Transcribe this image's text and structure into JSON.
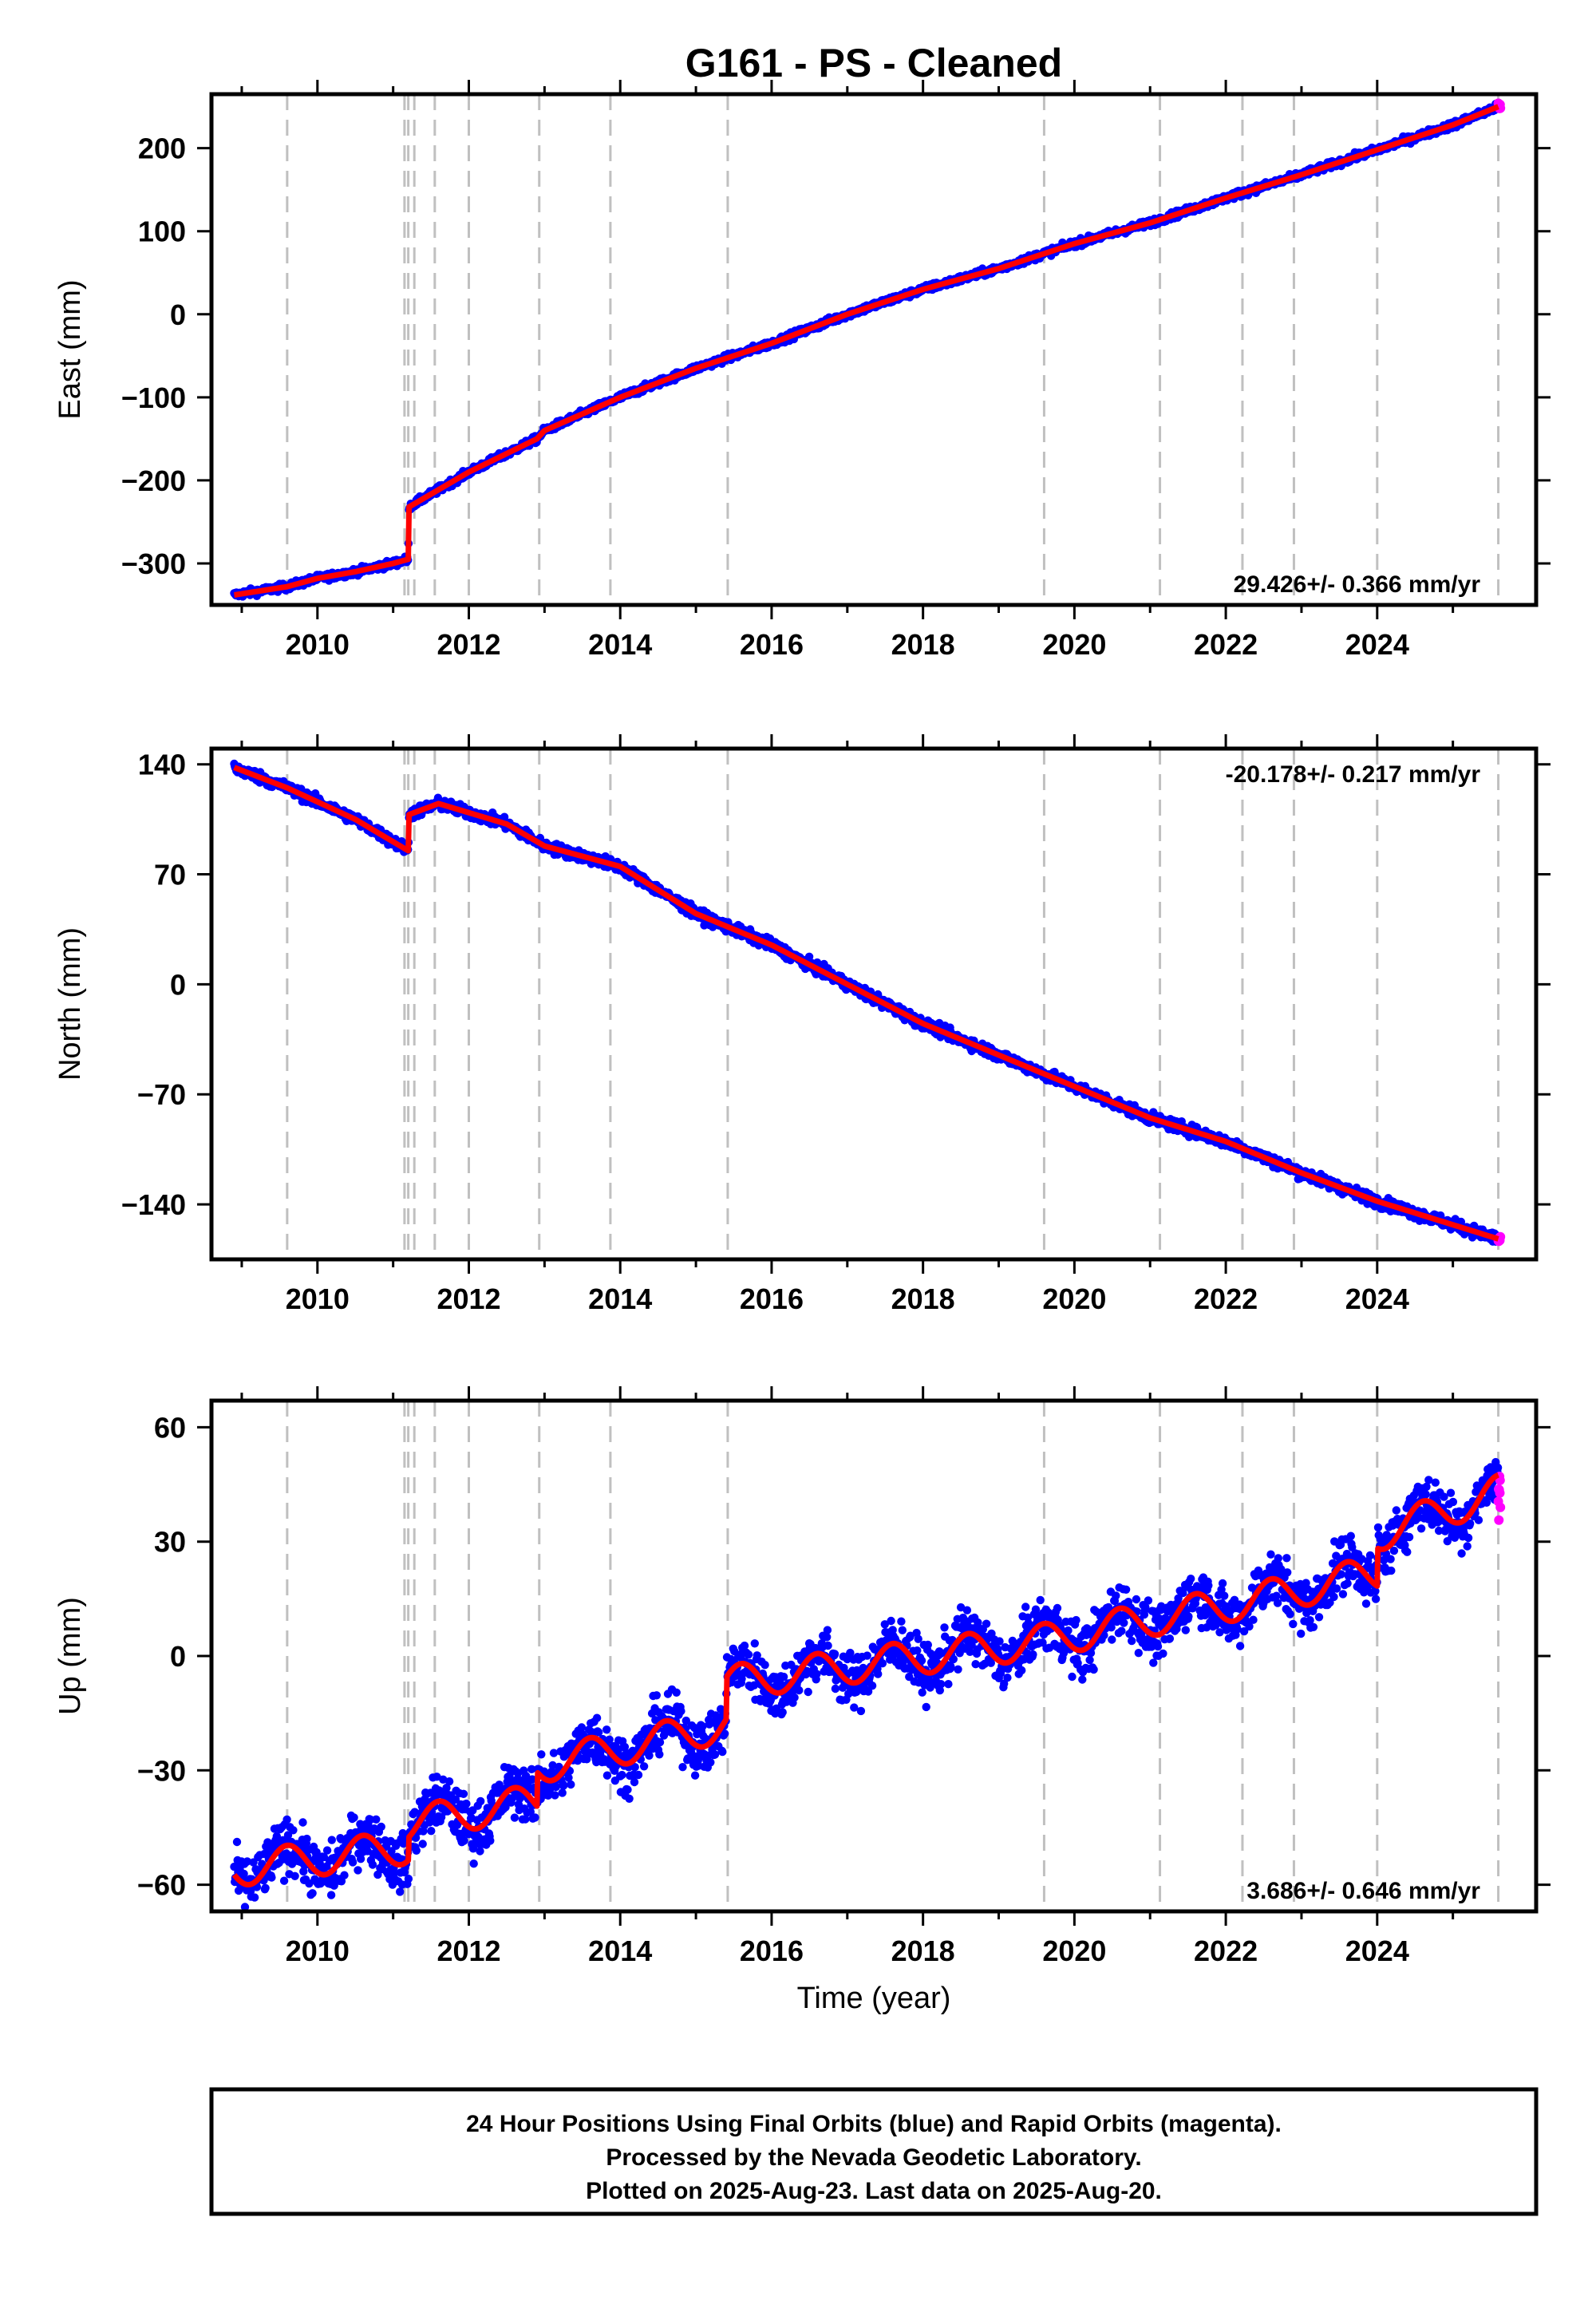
{
  "title": "G161  - PS - Cleaned",
  "xlabel": "Time (year)",
  "colors": {
    "final_orbits": "#0000ff",
    "rapid_orbits": "#ff00ff",
    "model": "#ff0000",
    "steps": "#c0c0c0",
    "frame": "#000000"
  },
  "footer": {
    "line1": "24 Hour Positions Using Final Orbits (blue) and Rapid Orbits (magenta).",
    "line2": "Processed by the Nevada Geodetic Laboratory.",
    "line3": "Plotted on 2025-Aug-23. Last data on 2025-Aug-20."
  },
  "chart_data": [
    {
      "type": "scatter",
      "component": "east",
      "ylabel": "East (mm)",
      "rate_label": "29.426+/- 0.366 mm/yr",
      "rate_position": "bottom-right",
      "x_range": [
        2008.6,
        2026.1
      ],
      "ylim": [
        -350,
        265
      ],
      "x_ticks": [
        2010,
        2012,
        2014,
        2016,
        2018,
        2020,
        2022,
        2024
      ],
      "y_ticks": [
        -300,
        -200,
        -100,
        0,
        100,
        200
      ],
      "y_tick_labels": [
        "−300",
        "−200",
        "−100",
        "0",
        "100",
        "200"
      ],
      "series": [
        {
          "role": "trend",
          "x": [
            2008.9,
            2009.6,
            2010.0,
            2010.5,
            2011.0,
            2011.2,
            2011.21,
            2012.0,
            2012.9,
            2013.0,
            2014.0,
            2015.0,
            2016.0,
            2017.0,
            2018.0,
            2019.0,
            2020.0,
            2021.0,
            2022.0,
            2023.0,
            2024.0,
            2025.0,
            2025.6
          ],
          "y": [
            -338,
            -328,
            -318,
            -310,
            -300,
            -295,
            -232,
            -190,
            -150,
            -140,
            -100,
            -65,
            -35,
            0,
            30,
            55,
            85,
            110,
            140,
            168,
            198,
            228,
            250
          ],
          "noise": 3
        }
      ]
    },
    {
      "type": "scatter",
      "component": "north",
      "ylabel": "North (mm)",
      "rate_label": "-20.178+/- 0.217 mm/yr",
      "rate_position": "top-right",
      "x_range": [
        2008.6,
        2026.1
      ],
      "ylim": [
        -175,
        150
      ],
      "x_ticks": [
        2010,
        2012,
        2014,
        2016,
        2018,
        2020,
        2022,
        2024
      ],
      "y_ticks": [
        -140,
        -70,
        0,
        70,
        140
      ],
      "y_tick_labels": [
        "−140",
        "−70",
        "0",
        "70",
        "140"
      ],
      "series": [
        {
          "role": "trend",
          "x": [
            2008.9,
            2009.6,
            2010.5,
            2011.2,
            2011.21,
            2011.6,
            2012.5,
            2013.0,
            2014.0,
            2015.0,
            2016.0,
            2017.0,
            2018.0,
            2019.0,
            2020.0,
            2021.0,
            2022.0,
            2023.0,
            2024.0,
            2025.6
          ],
          "y": [
            138,
            125,
            105,
            85,
            108,
            115,
            102,
            88,
            75,
            45,
            25,
            0,
            -25,
            -45,
            -65,
            -85,
            -100,
            -120,
            -138,
            -162
          ],
          "noise": 2.5
        }
      ]
    },
    {
      "type": "scatter",
      "component": "up",
      "ylabel": "Up (mm)",
      "rate_label": "3.686+/- 0.646 mm/yr",
      "rate_position": "bottom-right",
      "x_range": [
        2008.6,
        2026.1
      ],
      "ylim": [
        -67,
        67
      ],
      "x_ticks": [
        2010,
        2012,
        2014,
        2016,
        2018,
        2020,
        2022,
        2024
      ],
      "y_ticks": [
        -60,
        -30,
        0,
        30,
        60
      ],
      "y_tick_labels": [
        "−60",
        "−30",
        "0",
        "30",
        "60"
      ],
      "series": [
        {
          "role": "trend",
          "x": [
            2008.9,
            2011.2,
            2011.21,
            2012.9,
            2012.91,
            2015.4,
            2015.41,
            2019.6,
            2021.1,
            2022.2,
            2022.9,
            2024.0,
            2024.01,
            2025.6
          ],
          "y": [
            -56,
            -50,
            -44,
            -38,
            -29,
            -18,
            -7,
            4,
            10,
            14,
            17,
            22,
            32,
            43
          ],
          "seasonal_amplitude": 4.5,
          "noise": 5
        }
      ]
    }
  ],
  "step_epochs": [
    2009.6,
    2011.15,
    2011.2,
    2011.28,
    2011.55,
    2012.0,
    2012.93,
    2013.87,
    2015.42,
    2019.6,
    2021.13,
    2022.22,
    2022.9,
    2024.0,
    2025.6
  ]
}
